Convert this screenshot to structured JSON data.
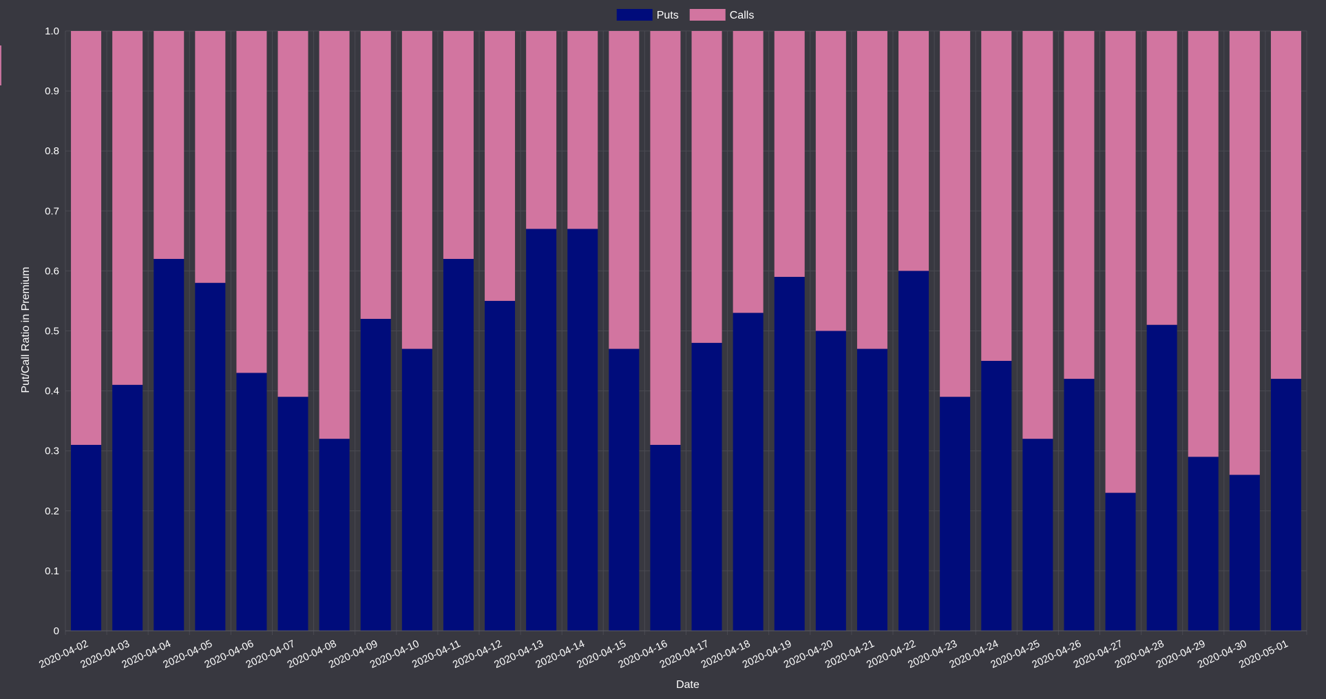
{
  "chart_data": {
    "type": "bar",
    "stacked": true,
    "title": "",
    "xlabel": "Date",
    "ylabel": "Put/Call Ratio in Premium",
    "ylim": [
      0,
      1.0
    ],
    "yticks": [
      "0",
      "0.1",
      "0.2",
      "0.3",
      "0.4",
      "0.5",
      "0.6",
      "0.7",
      "0.8",
      "0.9",
      "1.0"
    ],
    "grid": true,
    "legend": {
      "position": "top-center",
      "entries": [
        "Puts",
        "Calls"
      ]
    },
    "categories": [
      "2020-04-02",
      "2020-04-03",
      "2020-04-04",
      "2020-04-05",
      "2020-04-06",
      "2020-04-07",
      "2020-04-08",
      "2020-04-09",
      "2020-04-10",
      "2020-04-11",
      "2020-04-12",
      "2020-04-13",
      "2020-04-14",
      "2020-04-15",
      "2020-04-16",
      "2020-04-17",
      "2020-04-18",
      "2020-04-19",
      "2020-04-20",
      "2020-04-21",
      "2020-04-22",
      "2020-04-23",
      "2020-04-24",
      "2020-04-25",
      "2020-04-26",
      "2020-04-27",
      "2020-04-28",
      "2020-04-29",
      "2020-04-30",
      "2020-05-01"
    ],
    "series": [
      {
        "name": "Puts",
        "color": "#000c7b",
        "values": [
          0.31,
          0.41,
          0.62,
          0.58,
          0.43,
          0.39,
          0.32,
          0.52,
          0.47,
          0.62,
          0.55,
          0.67,
          0.67,
          0.47,
          0.31,
          0.48,
          0.53,
          0.59,
          0.5,
          0.47,
          0.6,
          0.39,
          0.45,
          0.32,
          0.42,
          0.23,
          0.51,
          0.29,
          0.26,
          0.42
        ]
      },
      {
        "name": "Calls",
        "color": "#d275a0",
        "values": [
          0.69,
          0.59,
          0.38,
          0.42,
          0.57,
          0.61,
          0.68,
          0.48,
          0.53,
          0.38,
          0.45,
          0.33,
          0.33,
          0.53,
          0.69,
          0.52,
          0.47,
          0.41,
          0.5,
          0.53,
          0.4,
          0.61,
          0.55,
          0.68,
          0.58,
          0.77,
          0.49,
          0.71,
          0.74,
          0.58
        ]
      }
    ]
  },
  "colors": {
    "background": "#383840",
    "grid": "#4a4a52",
    "text": "#ffffff",
    "edge_accent": "#c8739d"
  }
}
